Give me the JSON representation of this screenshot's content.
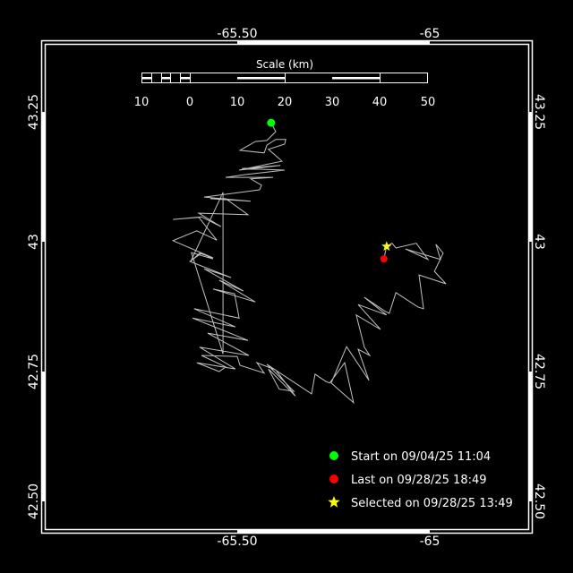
{
  "chart_data": {
    "type": "map-track",
    "axes": {
      "lon_ticks": [
        {
          "value": -65.5,
          "label": "-65.50"
        },
        {
          "value": -65,
          "label": "-65"
        }
      ],
      "lat_ticks": [
        {
          "value": 43.25,
          "label": "43.25"
        },
        {
          "value": 43,
          "label": "43"
        },
        {
          "value": 42.75,
          "label": "42.75"
        },
        {
          "value": 42.5,
          "label": "42.50"
        }
      ]
    },
    "scale_bar": {
      "title": "Scale (km)",
      "labels": [
        "10",
        "0",
        "10",
        "20",
        "30",
        "40",
        "50"
      ]
    },
    "track_color": "#c0c0c0",
    "track": [
      [
        -65.412,
        43.229
      ],
      [
        -65.4,
        43.212
      ],
      [
        -65.423,
        43.195
      ],
      [
        -65.453,
        43.193
      ],
      [
        -65.493,
        43.176
      ],
      [
        -65.43,
        43.171
      ],
      [
        -65.423,
        43.186
      ],
      [
        -65.4,
        43.197
      ],
      [
        -65.374,
        43.197
      ],
      [
        -65.377,
        43.188
      ],
      [
        -65.419,
        43.178
      ],
      [
        -65.391,
        43.16
      ],
      [
        -65.384,
        43.155
      ],
      [
        -65.495,
        43.138
      ],
      [
        -65.388,
        43.147
      ],
      [
        -65.488,
        43.141
      ],
      [
        -65.377,
        43.138
      ],
      [
        -65.484,
        43.129
      ],
      [
        -65.53,
        43.124
      ],
      [
        -65.407,
        43.124
      ],
      [
        -65.465,
        43.121
      ],
      [
        -65.437,
        43.109
      ],
      [
        -65.442,
        43.1
      ],
      [
        -65.586,
        43.086
      ],
      [
        -65.465,
        43.078
      ],
      [
        -65.57,
        43.083
      ],
      [
        -65.53,
        43.083
      ],
      [
        -65.472,
        43.052
      ],
      [
        -65.6,
        43.055
      ],
      [
        -65.542,
        43.029
      ],
      [
        -65.593,
        43.048
      ],
      [
        -65.667,
        43.043
      ],
      [
        -65.6,
        43.047
      ],
      [
        -65.553,
        43.003
      ],
      [
        -65.605,
        43.021
      ],
      [
        -65.667,
        43.002
      ],
      [
        -65.563,
        42.969
      ],
      [
        -65.598,
        42.978
      ],
      [
        -65.621,
        42.962
      ],
      [
        -65.537,
        43.095
      ],
      [
        -65.537,
        42.784
      ],
      [
        -65.619,
        42.979
      ],
      [
        -65.563,
        42.967
      ],
      [
        -65.593,
        42.978
      ],
      [
        -65.623,
        42.962
      ],
      [
        -65.516,
        42.931
      ],
      [
        -65.586,
        42.948
      ],
      [
        -65.484,
        42.905
      ],
      [
        -65.547,
        42.926
      ],
      [
        -65.453,
        42.884
      ],
      [
        -65.563,
        42.909
      ],
      [
        -65.507,
        42.9
      ],
      [
        -65.495,
        42.853
      ],
      [
        -65.612,
        42.871
      ],
      [
        -65.505,
        42.836
      ],
      [
        -65.616,
        42.853
      ],
      [
        -65.472,
        42.81
      ],
      [
        -65.577,
        42.824
      ],
      [
        -65.47,
        42.781
      ],
      [
        -65.598,
        42.797
      ],
      [
        -65.505,
        42.755
      ],
      [
        -65.605,
        42.767
      ],
      [
        -65.547,
        42.75
      ],
      [
        -65.53,
        42.759
      ],
      [
        -65.593,
        42.781
      ],
      [
        -65.5,
        42.779
      ],
      [
        -65.493,
        42.762
      ],
      [
        -65.43,
        42.747
      ],
      [
        -65.449,
        42.767
      ],
      [
        -65.4,
        42.753
      ],
      [
        -65.349,
        42.703
      ],
      [
        -65.419,
        42.755
      ],
      [
        -65.391,
        42.716
      ],
      [
        -65.353,
        42.712
      ],
      [
        -65.423,
        42.764
      ],
      [
        -65.307,
        42.707
      ],
      [
        -65.298,
        42.745
      ],
      [
        -65.27,
        42.731
      ],
      [
        -65.26,
        42.728
      ],
      [
        -65.221,
        42.767
      ],
      [
        -65.198,
        42.69
      ],
      [
        -65.256,
        42.728
      ],
      [
        -65.216,
        42.798
      ],
      [
        -65.158,
        42.733
      ],
      [
        -65.186,
        42.793
      ],
      [
        -65.156,
        42.781
      ],
      [
        -65.17,
        42.797
      ],
      [
        -65.191,
        42.859
      ],
      [
        -65.128,
        42.831
      ],
      [
        -65.186,
        42.879
      ],
      [
        -65.112,
        42.859
      ],
      [
        -65.17,
        42.893
      ],
      [
        -65.116,
        42.866
      ],
      [
        -65.105,
        42.862
      ],
      [
        -65.088,
        42.902
      ],
      [
        -65.03,
        42.874
      ],
      [
        -65.016,
        42.871
      ],
      [
        -65.028,
        42.936
      ],
      [
        -64.958,
        42.919
      ],
      [
        -64.988,
        42.943
      ],
      [
        -64.965,
        42.978
      ],
      [
        -64.984,
        42.995
      ],
      [
        -64.972,
        42.966
      ],
      [
        -65.063,
        42.986
      ],
      [
        -65.005,
        42.966
      ],
      [
        -65.035,
        42.997
      ],
      [
        -65.088,
        42.988
      ],
      [
        -65.098,
        42.997
      ],
      [
        -65.112,
        42.991
      ],
      [
        -65.119,
        42.967
      ]
    ],
    "markers": {
      "start": {
        "lon": -65.412,
        "lat": 43.229,
        "color": "#00ff00"
      },
      "last": {
        "lon": -65.119,
        "lat": 42.967,
        "color": "#ff0000"
      },
      "selected": {
        "lon": -65.112,
        "lat": 42.991,
        "color": "#ffff00"
      }
    }
  },
  "legend": {
    "start": {
      "label": "Start on 09/04/25 11:04",
      "color": "#00ff00",
      "icon": "circle"
    },
    "last": {
      "label": "Last on 09/28/25 18:49",
      "color": "#ff0000",
      "icon": "circle"
    },
    "selected": {
      "label": "Selected on 09/28/25 13:49",
      "color": "#ffff00",
      "icon": "star"
    }
  }
}
